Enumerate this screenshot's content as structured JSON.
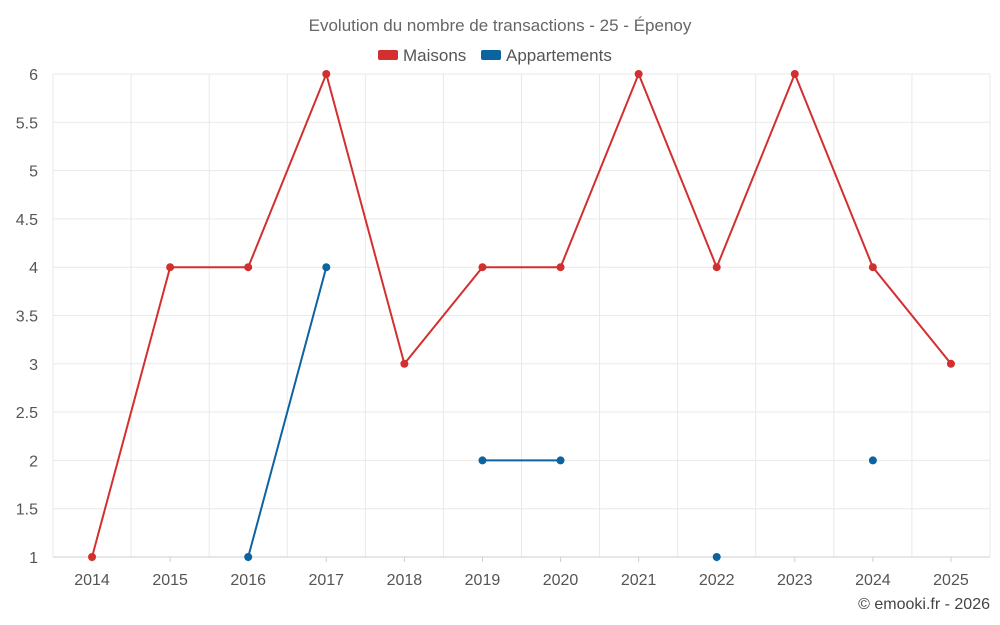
{
  "chart_data": {
    "type": "line",
    "title": "Evolution du nombre de transactions - 25 - Épenoy",
    "categories": [
      "2014",
      "2015",
      "2016",
      "2017",
      "2018",
      "2019",
      "2020",
      "2021",
      "2022",
      "2023",
      "2024",
      "2025"
    ],
    "ylim": [
      1,
      6
    ],
    "yticks": [
      "1",
      "1.5",
      "2",
      "2.5",
      "3",
      "3.5",
      "4",
      "4.5",
      "5",
      "5.5",
      "6"
    ],
    "grid": true,
    "legend_position": "top-center",
    "series": [
      {
        "name": "Maisons",
        "color": "#d32f2f",
        "values": [
          1,
          4,
          4,
          6,
          3,
          4,
          4,
          6,
          4,
          6,
          4,
          3
        ]
      },
      {
        "name": "Appartements",
        "color": "#0b64a0",
        "values": [
          null,
          null,
          1,
          4,
          null,
          2,
          2,
          null,
          1,
          null,
          2,
          null
        ]
      }
    ],
    "credit": "© emooki.fr - 2026"
  }
}
